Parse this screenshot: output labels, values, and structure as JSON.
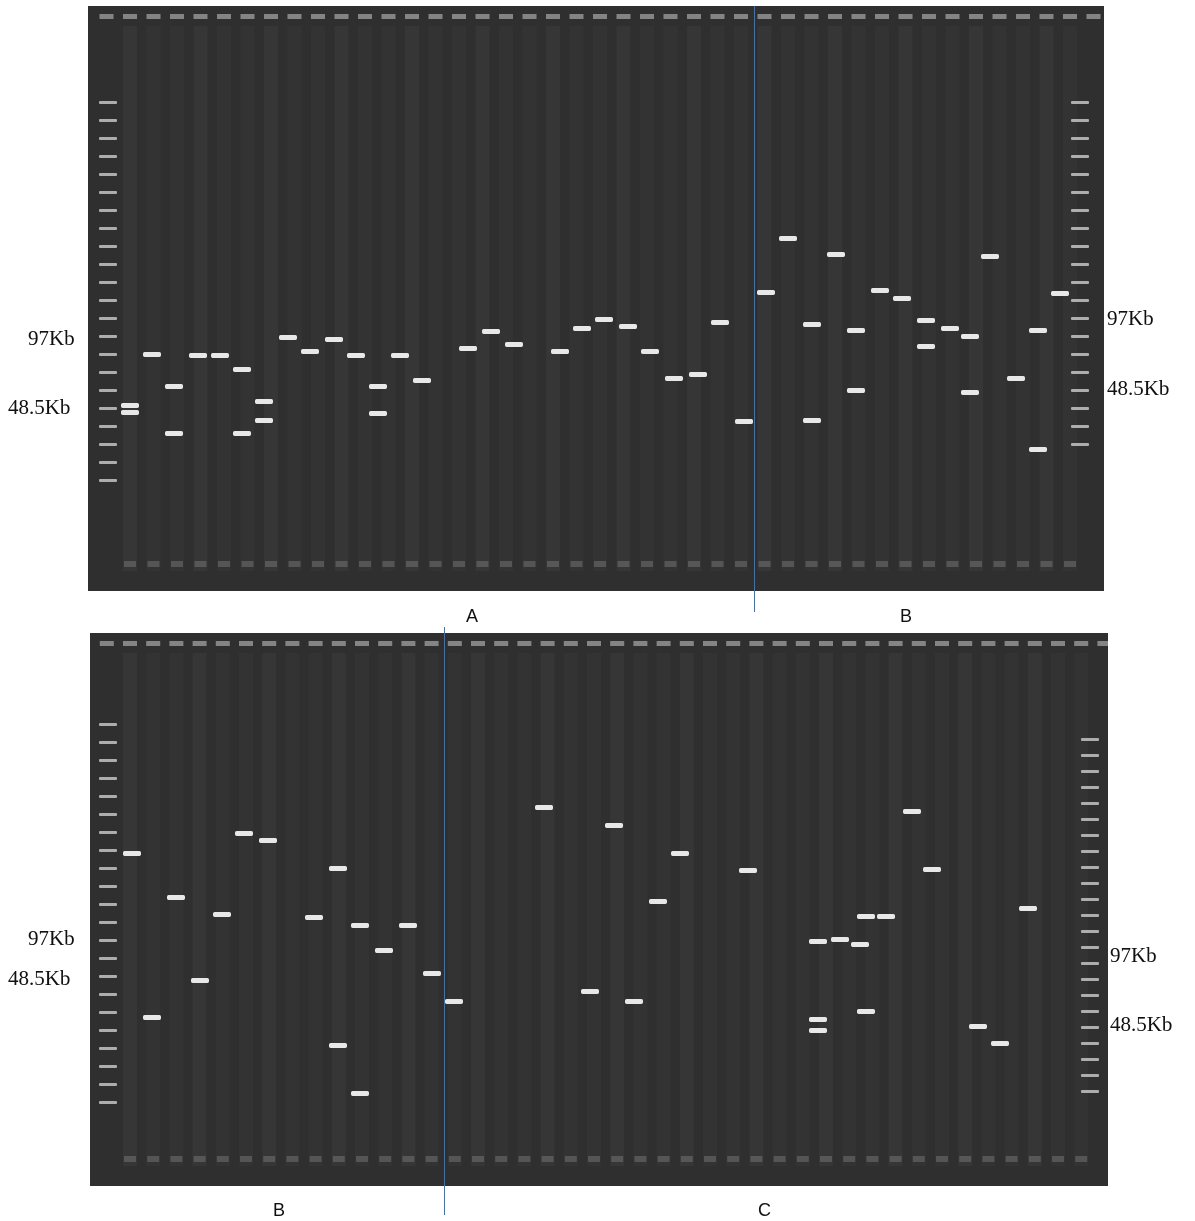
{
  "figure": {
    "top_gel": {
      "left_labels": [
        "97Kb",
        "48.5Kb"
      ],
      "right_labels": [
        "97Kb",
        "48.5Kb"
      ],
      "section_labels": [
        "A",
        "B"
      ]
    },
    "bottom_gel": {
      "left_labels": [
        "97Kb",
        "48.5Kb"
      ],
      "right_labels": [
        "97Kb",
        "48.5Kb"
      ],
      "section_labels": [
        "B",
        "C"
      ]
    }
  },
  "colors": {
    "gel_background": "#2f2f2f",
    "band": "#f2f2f2",
    "ladder": "#d8d8d8",
    "divider_line": "#4a6fa5",
    "label_text": "#111111"
  }
}
